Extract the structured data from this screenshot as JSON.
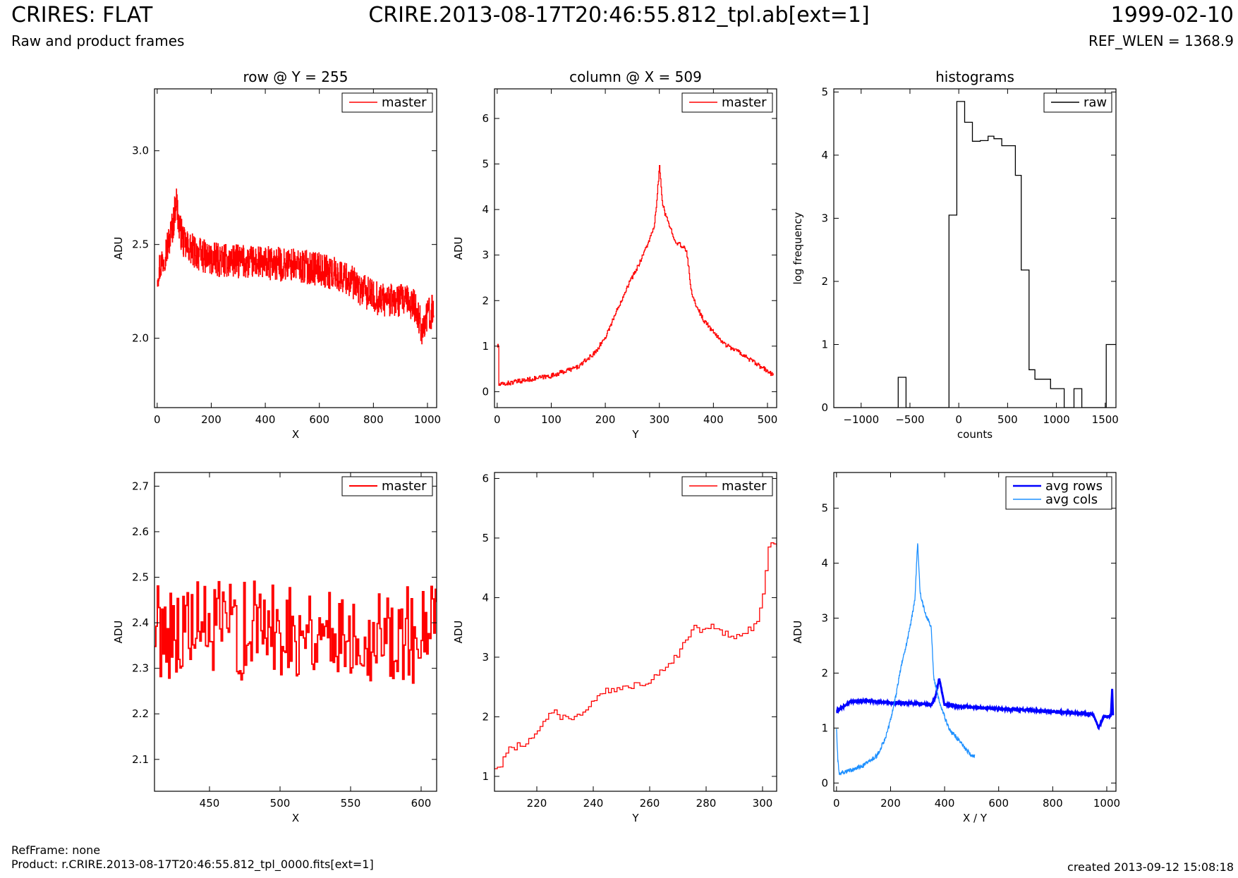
{
  "header": {
    "title": "CRIRES: FLAT",
    "subtitle": "Raw and product frames",
    "file": "CRIRE.2013-08-17T20:46:55.812_tpl.ab[ext=1]",
    "date": "1999-02-10",
    "ref_wlen": "REF_WLEN = 1368.9"
  },
  "footer": {
    "refframe": "RefFrame: none",
    "product": "Product: r.CRIRE.2013-08-17T20:46:55.812_tpl_0000.fits[ext=1]",
    "created": "created 2013-09-12 15:08:18"
  },
  "colors": {
    "master": "#ff0000",
    "raw": "#000000",
    "avg_rows": "#0000ff",
    "avg_cols": "#1e90ff"
  },
  "chart_data": [
    {
      "type": "line",
      "title": "row @ Y = 255",
      "xlabel": "X",
      "ylabel": "ADU",
      "xlim": [
        -10,
        1034
      ],
      "ylim": [
        1.63,
        3.33
      ],
      "xticks": [
        0,
        200,
        400,
        600,
        800,
        1000
      ],
      "yticks": [
        2.0,
        2.5,
        3.0
      ],
      "ytick_labels": [
        "2.0",
        "2.5",
        "3.0"
      ],
      "legend": "top-right",
      "series": [
        {
          "name": "master",
          "color": "#ff0000",
          "step": true,
          "noise": 0.09,
          "count": 1024,
          "x": [
            0,
            20,
            40,
            60,
            70,
            80,
            100,
            150,
            200,
            300,
            400,
            500,
            600,
            700,
            750,
            800,
            850,
            900,
            950,
            980,
            1000,
            1023
          ],
          "y": [
            2.35,
            2.42,
            2.5,
            2.62,
            2.75,
            2.6,
            2.5,
            2.45,
            2.42,
            2.41,
            2.4,
            2.39,
            2.37,
            2.32,
            2.26,
            2.22,
            2.2,
            2.2,
            2.18,
            2.05,
            2.12,
            2.15
          ]
        }
      ]
    },
    {
      "type": "line",
      "title": "column @ X = 509",
      "xlabel": "Y",
      "ylabel": "ADU",
      "xlim": [
        -5,
        517
      ],
      "ylim": [
        -0.35,
        6.65
      ],
      "xticks": [
        0,
        100,
        200,
        300,
        400,
        500
      ],
      "yticks": [
        0,
        1,
        2,
        3,
        4,
        5,
        6
      ],
      "legend": "top-right",
      "series": [
        {
          "name": "master",
          "color": "#ff0000",
          "step": true,
          "noise": 0.05,
          "count": 512,
          "x": [
            0,
            2,
            3,
            50,
            100,
            150,
            180,
            200,
            220,
            240,
            260,
            280,
            290,
            295,
            300,
            305,
            310,
            320,
            330,
            340,
            350,
            360,
            380,
            400,
            420,
            450,
            480,
            500,
            511
          ],
          "y": [
            1.0,
            1.0,
            0.15,
            0.25,
            0.35,
            0.55,
            0.85,
            1.2,
            1.75,
            2.3,
            2.75,
            3.3,
            3.6,
            4.2,
            4.95,
            4.2,
            3.9,
            3.6,
            3.3,
            3.2,
            3.1,
            2.1,
            1.6,
            1.3,
            1.05,
            0.85,
            0.6,
            0.45,
            0.35
          ]
        }
      ]
    },
    {
      "type": "line",
      "title": "histograms",
      "xlabel": "counts",
      "ylabel": "log frequency",
      "xlim": [
        -1280,
        1610
      ],
      "ylim": [
        0,
        5.05
      ],
      "xticks": [
        -1000,
        -500,
        0,
        500,
        1000,
        1500
      ],
      "xtick_labels": [
        "−1000",
        "−500",
        "0",
        "500",
        "1000",
        "1500"
      ],
      "yticks": [
        0,
        1,
        2,
        3,
        4,
        5
      ],
      "legend": "top-right",
      "series": [
        {
          "name": "raw",
          "color": "#000000",
          "step": true,
          "x": [
            -1280,
            -620,
            -620,
            -540,
            -540,
            -100,
            -100,
            -20,
            -20,
            60,
            60,
            140,
            140,
            220,
            220,
            300,
            300,
            360,
            360,
            440,
            440,
            580,
            580,
            640,
            640,
            720,
            720,
            780,
            780,
            940,
            940,
            1080,
            1080,
            1180,
            1180,
            1260,
            1260,
            1510,
            1510,
            1610
          ],
          "y": [
            0,
            0,
            0.48,
            0.48,
            0,
            0,
            3.05,
            3.05,
            4.85,
            4.85,
            4.52,
            4.52,
            4.22,
            4.22,
            4.23,
            4.23,
            4.3,
            4.3,
            4.26,
            4.26,
            4.15,
            4.15,
            3.68,
            3.68,
            2.18,
            2.18,
            0.6,
            0.6,
            0.45,
            0.45,
            0.3,
            0.3,
            0.0,
            0.0,
            0.3,
            0.3,
            0.0,
            0.0,
            1.0,
            1.0
          ]
        }
      ]
    },
    {
      "type": "line",
      "title": "",
      "xlabel": "X",
      "ylabel": "ADU",
      "xlim": [
        411,
        611
      ],
      "ylim": [
        2.03,
        2.73
      ],
      "xticks": [
        450,
        500,
        550,
        600
      ],
      "yticks": [
        2.1,
        2.2,
        2.3,
        2.4,
        2.5,
        2.6,
        2.7
      ],
      "ytick_labels": [
        "2.1",
        "2.2",
        "2.3",
        "2.4",
        "2.5",
        "2.6",
        "2.7"
      ],
      "legend": "top-right",
      "series": [
        {
          "name": "master",
          "color": "#ff0000",
          "step": true,
          "noise": 0.11,
          "count": 200,
          "stroke": 2,
          "x": [
            411,
            450,
            500,
            550,
            600,
            611
          ],
          "y": [
            2.39,
            2.38,
            2.39,
            2.38,
            2.37,
            2.37
          ]
        }
      ]
    },
    {
      "type": "line",
      "title": "",
      "xlabel": "Y",
      "ylabel": "ADU",
      "xlim": [
        205,
        305
      ],
      "ylim": [
        0.75,
        6.1
      ],
      "xticks": [
        220,
        240,
        260,
        280,
        300
      ],
      "yticks": [
        1,
        2,
        3,
        4,
        5,
        6
      ],
      "legend": "top-right",
      "series": [
        {
          "name": "master",
          "color": "#ff0000",
          "step": true,
          "noise": 0.06,
          "count": 100,
          "x": [
            205,
            207,
            210,
            215,
            220,
            225,
            230,
            235,
            240,
            245,
            250,
            255,
            260,
            265,
            270,
            275,
            278,
            280,
            283,
            285,
            290,
            295,
            298,
            300,
            302,
            305
          ],
          "y": [
            1.15,
            1.2,
            1.45,
            1.55,
            1.75,
            2.1,
            1.95,
            2.05,
            2.25,
            2.45,
            2.45,
            2.55,
            2.6,
            2.85,
            3.05,
            3.5,
            3.45,
            3.55,
            3.5,
            3.4,
            3.35,
            3.45,
            3.6,
            4.1,
            4.9,
            4.85
          ]
        }
      ]
    },
    {
      "type": "line",
      "title": "",
      "xlabel": "X / Y",
      "ylabel": "ADU",
      "xlim": [
        -10,
        1034
      ],
      "ylim": [
        -0.15,
        5.65
      ],
      "xticks": [
        0,
        200,
        400,
        600,
        800,
        1000
      ],
      "yticks": [
        0,
        1,
        2,
        3,
        4,
        5
      ],
      "legend": "top-right",
      "series": [
        {
          "name": "avg rows",
          "color": "#0000ff",
          "step": false,
          "noise": 0.015,
          "count": 1024,
          "stroke": 3,
          "x": [
            0,
            50,
            100,
            200,
            300,
            350,
            365,
            380,
            400,
            500,
            600,
            700,
            800,
            900,
            950,
            970,
            990,
            1000,
            1015,
            1020,
            1023
          ],
          "y": [
            1.3,
            1.48,
            1.5,
            1.46,
            1.45,
            1.42,
            1.55,
            1.9,
            1.42,
            1.38,
            1.35,
            1.33,
            1.3,
            1.27,
            1.25,
            1.0,
            1.22,
            1.2,
            1.22,
            1.7,
            1.22
          ]
        },
        {
          "name": "avg cols",
          "color": "#1e90ff",
          "step": false,
          "noise": 0.04,
          "count": 512,
          "x": [
            0,
            5,
            10,
            50,
            100,
            150,
            180,
            200,
            220,
            240,
            260,
            280,
            290,
            295,
            300,
            305,
            310,
            320,
            330,
            340,
            350,
            360,
            380,
            400,
            420,
            450,
            480,
            500,
            511
          ],
          "y": [
            1.0,
            0.4,
            0.18,
            0.22,
            0.32,
            0.5,
            0.8,
            1.15,
            1.6,
            2.15,
            2.55,
            3.05,
            3.35,
            3.85,
            4.4,
            3.85,
            3.45,
            3.25,
            3.05,
            2.95,
            2.85,
            1.9,
            1.5,
            1.2,
            0.95,
            0.8,
            0.6,
            0.5,
            0.48
          ]
        }
      ]
    }
  ]
}
